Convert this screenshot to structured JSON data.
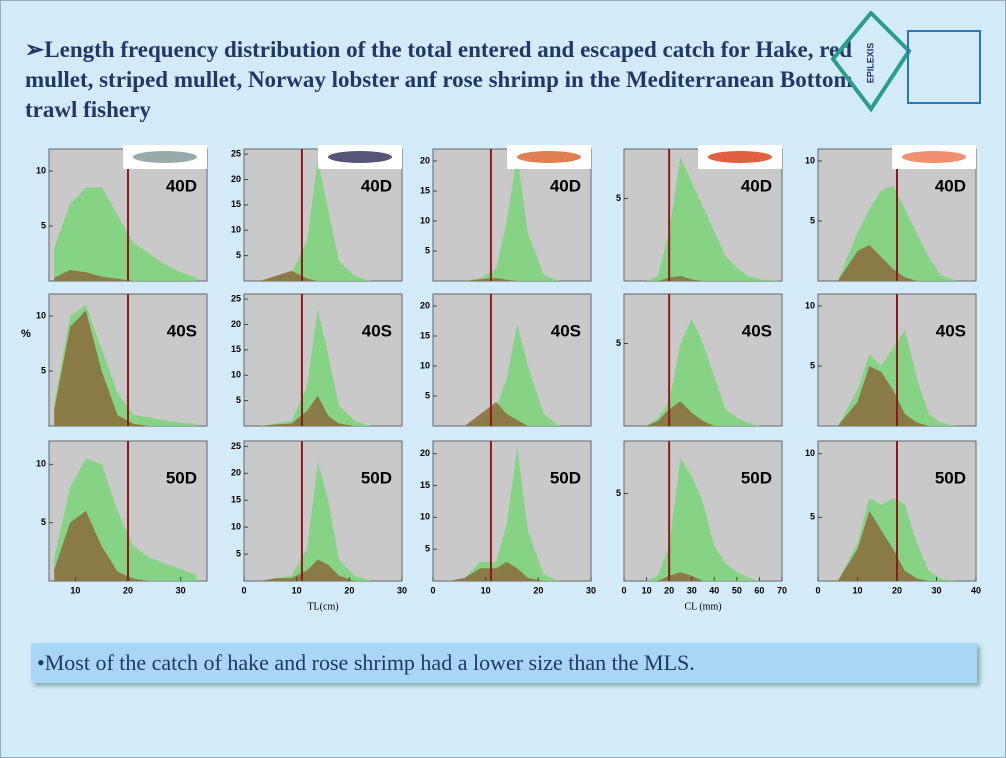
{
  "title": "➢Length frequency distribution of the total entered and escaped catch for Hake, red mullet, striped mullet, Norway lobster anf rose shrimp in the Mediterranean Bottom trawl fishery",
  "logo": "EPILEXIS",
  "y_label": "%",
  "note": "•Most of the catch of hake and rose shrimp had a lower size than the MLS.",
  "chart_data": [
    {
      "type": "area",
      "label": "40D",
      "x": [
        6,
        9,
        12,
        15,
        18,
        21,
        24,
        27,
        30,
        33
      ],
      "xlim": [
        5,
        35
      ],
      "ylim": [
        0,
        12
      ],
      "yticks": [
        5,
        10
      ],
      "mls": 20,
      "series": [
        {
          "color": "#7ed47e",
          "values": [
            3,
            7,
            8.5,
            8.5,
            6,
            3.5,
            2.5,
            1.5,
            0.8,
            0.3
          ]
        },
        {
          "color": "#8b6a3a",
          "values": [
            0.3,
            1,
            0.8,
            0.4,
            0.2,
            0,
            0,
            0,
            0,
            0
          ]
        }
      ]
    },
    {
      "type": "area",
      "label": "40S",
      "x": [
        6,
        9,
        12,
        15,
        18,
        21,
        24,
        27,
        30,
        33
      ],
      "xlim": [
        5,
        35
      ],
      "ylim": [
        0,
        12
      ],
      "yticks": [
        5,
        10
      ],
      "mls": 20,
      "series": [
        {
          "color": "#7ed47e",
          "values": [
            2,
            10,
            11,
            7,
            3,
            1,
            0.8,
            0.5,
            0.3,
            0.2
          ]
        },
        {
          "color": "#8b6a3a",
          "values": [
            1.5,
            9,
            10.5,
            5,
            1,
            0.2,
            0,
            0,
            0,
            0
          ]
        }
      ]
    },
    {
      "type": "area",
      "label": "50D",
      "x": [
        6,
        9,
        12,
        15,
        18,
        21,
        24,
        27,
        30,
        33
      ],
      "xlim": [
        5,
        35
      ],
      "ylim": [
        0,
        12
      ],
      "yticks": [
        5,
        10
      ],
      "xticks": [
        10,
        20,
        30
      ],
      "mls": 20,
      "series": [
        {
          "color": "#7ed47e",
          "values": [
            2,
            8,
            10.5,
            10,
            6,
            3,
            2,
            1.5,
            1,
            0.5
          ]
        },
        {
          "color": "#8b6a3a",
          "values": [
            1,
            5,
            6,
            3,
            0.8,
            0.2,
            0,
            0,
            0,
            0
          ]
        }
      ]
    },
    {
      "type": "area",
      "label": "40D",
      "x": [
        0,
        3,
        6,
        9,
        12,
        14,
        16,
        18,
        21,
        24,
        27,
        30
      ],
      "xlim": [
        0,
        30
      ],
      "ylim": [
        0,
        26
      ],
      "yticks": [
        5,
        10,
        15,
        20,
        25
      ],
      "mls": 11,
      "series": [
        {
          "color": "#7ed47e",
          "values": [
            0,
            0,
            0.5,
            1.5,
            8,
            24,
            14,
            4,
            1,
            0,
            0,
            0
          ]
        },
        {
          "color": "#8b6a3a",
          "values": [
            0,
            0,
            1,
            2,
            0.5,
            0,
            0,
            0,
            0,
            0,
            0,
            0
          ]
        }
      ]
    },
    {
      "type": "area",
      "label": "40S",
      "x": [
        0,
        3,
        6,
        9,
        12,
        14,
        16,
        18,
        21,
        24,
        27,
        30
      ],
      "xlim": [
        0,
        30
      ],
      "ylim": [
        0,
        26
      ],
      "yticks": [
        5,
        10,
        15,
        20,
        25
      ],
      "mls": 11,
      "series": [
        {
          "color": "#7ed47e",
          "values": [
            0,
            0,
            0.5,
            1,
            8,
            23,
            14,
            4,
            1,
            0,
            0,
            0
          ]
        },
        {
          "color": "#8b6a3a",
          "values": [
            0,
            0,
            0.3,
            0.5,
            3,
            6,
            2,
            0.5,
            0,
            0,
            0,
            0
          ]
        }
      ]
    },
    {
      "type": "area",
      "label": "50D",
      "x": [
        0,
        3,
        6,
        9,
        12,
        14,
        16,
        18,
        21,
        24,
        27,
        30
      ],
      "xlim": [
        0,
        30
      ],
      "ylim": [
        0,
        26
      ],
      "yticks": [
        5,
        10,
        15,
        20,
        25
      ],
      "xticks": [
        0,
        10,
        20,
        30
      ],
      "x_label": "TL(cm)",
      "mls": 11,
      "series": [
        {
          "color": "#7ed47e",
          "values": [
            0,
            0,
            0.5,
            1,
            6,
            22,
            15,
            4,
            1,
            0,
            0,
            0
          ]
        },
        {
          "color": "#8b6a3a",
          "values": [
            0,
            0,
            0.5,
            0.5,
            2,
            4,
            3,
            1,
            0,
            0,
            0,
            0
          ]
        }
      ]
    },
    {
      "type": "area",
      "label": "40D",
      "x": [
        0,
        3,
        6,
        9,
        12,
        14,
        16,
        18,
        21,
        24,
        27,
        30
      ],
      "xlim": [
        0,
        30
      ],
      "ylim": [
        0,
        22
      ],
      "yticks": [
        5,
        10,
        15,
        20
      ],
      "mls": 11,
      "series": [
        {
          "color": "#7ed47e",
          "values": [
            0,
            0,
            0,
            0.5,
            2,
            10,
            21,
            8,
            1,
            0,
            0,
            0
          ]
        },
        {
          "color": "#8b6a3a",
          "values": [
            0,
            0,
            0,
            0.3,
            0.5,
            0.2,
            0,
            0,
            0,
            0,
            0,
            0
          ]
        }
      ]
    },
    {
      "type": "area",
      "label": "40S",
      "x": [
        0,
        3,
        6,
        9,
        12,
        14,
        16,
        18,
        21,
        24,
        27,
        30
      ],
      "xlim": [
        0,
        30
      ],
      "ylim": [
        0,
        22
      ],
      "yticks": [
        5,
        10,
        15,
        20
      ],
      "mls": 11,
      "series": [
        {
          "color": "#7ed47e",
          "values": [
            0,
            0,
            0,
            1,
            3,
            8,
            17,
            10,
            2,
            0,
            0,
            0
          ]
        },
        {
          "color": "#8b6a3a",
          "values": [
            0,
            0,
            0,
            2,
            4,
            2,
            1,
            0,
            0,
            0,
            0,
            0
          ]
        }
      ]
    },
    {
      "type": "area",
      "label": "50D",
      "x": [
        0,
        3,
        6,
        9,
        12,
        14,
        16,
        18,
        21,
        24,
        27,
        30
      ],
      "xlim": [
        0,
        30
      ],
      "ylim": [
        0,
        22
      ],
      "yticks": [
        5,
        10,
        15,
        20
      ],
      "xticks": [
        0,
        10,
        20,
        30
      ],
      "mls": 11,
      "series": [
        {
          "color": "#7ed47e",
          "values": [
            0,
            0,
            0.5,
            3,
            3,
            9,
            21,
            8,
            1,
            0,
            0,
            0
          ]
        },
        {
          "color": "#8b6a3a",
          "values": [
            0,
            0,
            0.5,
            2,
            2,
            3,
            2,
            0.5,
            0,
            0,
            0,
            0
          ]
        }
      ]
    },
    {
      "type": "area",
      "label": "40D",
      "x": [
        0,
        10,
        15,
        20,
        25,
        30,
        35,
        40,
        45,
        50,
        55,
        60,
        70
      ],
      "xlim": [
        0,
        70
      ],
      "ylim": [
        0,
        8
      ],
      "yticks": [
        5
      ],
      "mls": 20,
      "series": [
        {
          "color": "#7ed47e",
          "values": [
            0,
            0,
            0.3,
            3,
            7.5,
            6,
            4.5,
            3,
            1.5,
            0.8,
            0.3,
            0.1,
            0
          ]
        },
        {
          "color": "#8b6a3a",
          "values": [
            0,
            0,
            0,
            0.2,
            0.3,
            0.1,
            0,
            0,
            0,
            0,
            0,
            0,
            0
          ]
        }
      ]
    },
    {
      "type": "area",
      "label": "40S",
      "x": [
        0,
        10,
        15,
        20,
        25,
        30,
        35,
        40,
        45,
        50,
        55,
        60,
        70
      ],
      "xlim": [
        0,
        70
      ],
      "ylim": [
        0,
        8
      ],
      "yticks": [
        5
      ],
      "mls": 20,
      "series": [
        {
          "color": "#7ed47e",
          "values": [
            0,
            0,
            0.5,
            1.5,
            5,
            6.5,
            5,
            3,
            1,
            0.5,
            0.2,
            0,
            0
          ]
        },
        {
          "color": "#8b6a3a",
          "values": [
            0,
            0,
            0.3,
            1,
            1.5,
            0.8,
            0.3,
            0,
            0,
            0,
            0,
            0,
            0
          ]
        }
      ]
    },
    {
      "type": "area",
      "label": "50D",
      "x": [
        0,
        10,
        15,
        20,
        25,
        30,
        35,
        40,
        45,
        50,
        55,
        60,
        70
      ],
      "xlim": [
        0,
        70
      ],
      "ylim": [
        0,
        8
      ],
      "yticks": [
        5
      ],
      "xticks": [
        0,
        10,
        20,
        30,
        40,
        50,
        60,
        70
      ],
      "x_label": "CL (mm)",
      "mls": 20,
      "series": [
        {
          "color": "#7ed47e",
          "values": [
            0,
            0,
            0.3,
            2,
            7,
            6,
            4.5,
            2,
            1,
            0.5,
            0.2,
            0,
            0
          ]
        },
        {
          "color": "#8b6a3a",
          "values": [
            0,
            0,
            0,
            0.3,
            0.5,
            0.3,
            0,
            0,
            0,
            0,
            0,
            0,
            0
          ]
        }
      ]
    },
    {
      "type": "area",
      "label": "40D",
      "x": [
        0,
        5,
        10,
        13,
        16,
        19,
        22,
        25,
        28,
        31,
        35,
        40
      ],
      "xlim": [
        0,
        40
      ],
      "ylim": [
        0,
        11
      ],
      "yticks": [
        5,
        10
      ],
      "mls": 20,
      "series": [
        {
          "color": "#7ed47e",
          "values": [
            0,
            0,
            4,
            6,
            7.5,
            8,
            6,
            4,
            2,
            0.5,
            0,
            0
          ]
        },
        {
          "color": "#8b6a3a",
          "values": [
            0,
            0,
            2.5,
            3,
            2,
            1,
            0.3,
            0,
            0,
            0,
            0,
            0
          ]
        }
      ]
    },
    {
      "type": "area",
      "label": "40S",
      "x": [
        0,
        5,
        10,
        13,
        16,
        19,
        22,
        25,
        28,
        31,
        35,
        40
      ],
      "xlim": [
        0,
        40
      ],
      "ylim": [
        0,
        11
      ],
      "yticks": [
        5,
        10
      ],
      "mls": 20,
      "series": [
        {
          "color": "#7ed47e",
          "values": [
            0,
            0,
            3,
            6,
            5,
            6.5,
            8,
            4,
            1,
            0.3,
            0,
            0
          ]
        },
        {
          "color": "#8b6a3a",
          "values": [
            0,
            0,
            2,
            5,
            4.5,
            3,
            1,
            0.3,
            0,
            0,
            0,
            0
          ]
        }
      ]
    },
    {
      "type": "area",
      "label": "50D",
      "x": [
        0,
        5,
        10,
        13,
        16,
        19,
        22,
        25,
        28,
        31,
        35,
        40
      ],
      "xlim": [
        0,
        40
      ],
      "ylim": [
        0,
        11
      ],
      "yticks": [
        5,
        10
      ],
      "xticks": [
        0,
        10,
        20,
        30,
        40
      ],
      "mls": 20,
      "series": [
        {
          "color": "#7ed47e",
          "values": [
            0,
            0,
            3,
            6.5,
            6,
            6.5,
            6,
            3,
            0.8,
            0.2,
            0,
            0
          ]
        },
        {
          "color": "#8b6a3a",
          "values": [
            0,
            0,
            2.5,
            5.5,
            4,
            2.5,
            0.8,
            0.2,
            0,
            0,
            0,
            0
          ]
        }
      ]
    }
  ]
}
